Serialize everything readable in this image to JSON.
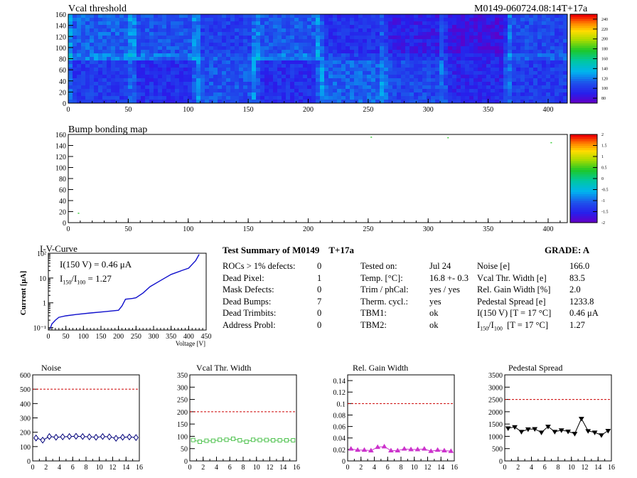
{
  "header": {
    "title": "Vcal threshold",
    "module_id": "M0149-060724.08:14T+17a"
  },
  "chart_data": [
    {
      "id": "vcal-threshold-map",
      "type": "heatmap",
      "title": "Vcal threshold",
      "xlim": [
        0,
        416
      ],
      "ylim": [
        0,
        160
      ],
      "x_ticks": [
        0,
        50,
        100,
        150,
        200,
        250,
        300,
        350,
        400
      ],
      "y_ticks": [
        0,
        20,
        40,
        60,
        80,
        100,
        120,
        140,
        160
      ],
      "z_range": [
        70,
        250
      ],
      "z_ticks": [
        80,
        100,
        120,
        140,
        160,
        180,
        200,
        220,
        240
      ],
      "roc_bottom_means": [
        100,
        96,
        108,
        95,
        112,
        104,
        92,
        100
      ],
      "roc_top_means": [
        112,
        108,
        102,
        110,
        96,
        88,
        82,
        104
      ]
    },
    {
      "id": "bump-bonding-map",
      "type": "heatmap",
      "title": "Bump bonding map",
      "xlim": [
        0,
        416
      ],
      "ylim": [
        0,
        160
      ],
      "x_ticks": [
        0,
        50,
        100,
        150,
        200,
        250,
        300,
        350,
        400
      ],
      "y_ticks": [
        0,
        20,
        40,
        60,
        80,
        100,
        120,
        140,
        160
      ],
      "z_range": [
        -2,
        2
      ],
      "z_ticks": [
        -2,
        -1.5,
        -1,
        -0.5,
        0,
        0.5,
        1,
        1.5,
        2
      ],
      "points": [
        [
          8,
          18
        ],
        [
          252,
          156
        ],
        [
          316,
          155
        ],
        [
          402,
          146
        ]
      ]
    },
    {
      "id": "iv-curve",
      "type": "line",
      "title": "I-V-Curve",
      "xlabel": "Voltage [V]",
      "ylabel": "Current [μA]",
      "xlim": [
        0,
        450
      ],
      "ylim": [
        0.08,
        100
      ],
      "log_y": true,
      "x_ticks": [
        0,
        50,
        100,
        150,
        200,
        250,
        300,
        350,
        400,
        450
      ],
      "y_ticks": [
        {
          "value": 0.1,
          "label": "10⁻¹"
        },
        {
          "value": 1,
          "label": "1"
        },
        {
          "value": 10,
          "label": "10"
        },
        {
          "value": 100,
          "label": "10²"
        }
      ],
      "annotation_1": "I(150 V) = 0.46 μA",
      "annotation_2_main": "I",
      "annotation_2_sub1": "150",
      "annotation_2_sep": "/I",
      "annotation_2_sub2": "100",
      "annotation_2_value": "=  1.27",
      "x": [
        5,
        10,
        20,
        30,
        50,
        80,
        120,
        160,
        200,
        210,
        220,
        240,
        250,
        270,
        290,
        320,
        350,
        380,
        400,
        420,
        430
      ],
      "y": [
        0.09,
        0.14,
        0.2,
        0.26,
        0.3,
        0.34,
        0.39,
        0.44,
        0.5,
        0.75,
        1.4,
        1.5,
        1.6,
        2.5,
        4.5,
        8,
        14,
        20,
        25,
        50,
        90
      ],
      "color": "#1010cc"
    },
    {
      "id": "noise-plot",
      "type": "line",
      "title": "Noise",
      "xlim": [
        0,
        16
      ],
      "ylim": [
        0,
        600
      ],
      "x_ticks": [
        0,
        2,
        4,
        6,
        8,
        10,
        12,
        14,
        16
      ],
      "y_ticks": [
        0,
        100,
        200,
        300,
        400,
        500,
        600
      ],
      "cut": 500,
      "marker": "diamond",
      "color": "#00007a",
      "x": [
        0.5,
        1.5,
        2.5,
        3.5,
        4.5,
        5.5,
        6.5,
        7.5,
        8.5,
        9.5,
        10.5,
        11.5,
        12.5,
        13.5,
        14.5,
        15.5
      ],
      "y": [
        160,
        145,
        170,
        165,
        168,
        170,
        172,
        170,
        168,
        165,
        170,
        168,
        158,
        165,
        167,
        163
      ]
    },
    {
      "id": "vcal-width-plot",
      "type": "line",
      "title": "Vcal Thr. Width",
      "xlim": [
        0,
        16
      ],
      "ylim": [
        0,
        350
      ],
      "x_ticks": [
        0,
        2,
        4,
        6,
        8,
        10,
        12,
        14,
        16
      ],
      "y_ticks": [
        0,
        50,
        100,
        150,
        200,
        250,
        300,
        350
      ],
      "cut": 200,
      "marker": "square",
      "color": "#4ec24e",
      "x": [
        0.5,
        1.5,
        2.5,
        3.5,
        4.5,
        5.5,
        6.5,
        7.5,
        8.5,
        9.5,
        10.5,
        11.5,
        12.5,
        13.5,
        14.5,
        15.5
      ],
      "y": [
        85,
        78,
        82,
        82,
        86,
        86,
        90,
        84,
        78,
        86,
        85,
        85,
        84,
        84,
        84,
        84
      ]
    },
    {
      "id": "gain-width-plot",
      "type": "line",
      "title": "Rel. Gain Width",
      "xlim": [
        0,
        16
      ],
      "ylim": [
        0,
        0.15
      ],
      "x_ticks": [
        0,
        2,
        4,
        6,
        8,
        10,
        12,
        14,
        16
      ],
      "y_ticks": [
        0,
        0.02,
        0.04,
        0.06,
        0.08,
        0.1,
        0.12,
        0.14
      ],
      "cut": 0.1,
      "marker": "triangle",
      "color": "#cc33cc",
      "x": [
        0.5,
        1.5,
        2.5,
        3.5,
        4.5,
        5.5,
        6.5,
        7.5,
        8.5,
        9.5,
        10.5,
        11.5,
        12.5,
        13.5,
        14.5,
        15.5
      ],
      "y": [
        0.021,
        0.019,
        0.019,
        0.018,
        0.024,
        0.025,
        0.018,
        0.018,
        0.021,
        0.02,
        0.02,
        0.021,
        0.017,
        0.019,
        0.018,
        0.017
      ]
    },
    {
      "id": "pedestal-plot",
      "type": "line",
      "title": "Pedestal Spread",
      "xlim": [
        0,
        16
      ],
      "ylim": [
        0,
        3500
      ],
      "x_ticks": [
        0,
        2,
        4,
        6,
        8,
        10,
        12,
        14,
        16
      ],
      "y_ticks": [
        0,
        500,
        1000,
        1500,
        2000,
        2500,
        3000,
        3500
      ],
      "cut": 2500,
      "marker": "triangle-down",
      "color": "#000000",
      "x": [
        0.5,
        1.5,
        2.5,
        3.5,
        4.5,
        5.5,
        6.5,
        7.5,
        8.5,
        9.5,
        10.5,
        11.5,
        12.5,
        13.5,
        14.5,
        15.5
      ],
      "y": [
        1330,
        1380,
        1190,
        1290,
        1300,
        1160,
        1400,
        1190,
        1250,
        1200,
        1110,
        1720,
        1220,
        1160,
        1050,
        1230
      ]
    }
  ],
  "summary": {
    "title": "Test Summary of M0149",
    "temp_tag": "T+17a",
    "grade": "GRADE:  A",
    "col1": [
      {
        "label": "ROCs > 1% defects:",
        "value": "0"
      },
      {
        "label": "Dead Pixel:",
        "value": "1"
      },
      {
        "label": "Mask Defects:",
        "value": "0"
      },
      {
        "label": "Dead Bumps:",
        "value": "7"
      },
      {
        "label": "Dead Trimbits:",
        "value": "0"
      },
      {
        "label": "Address Probl:",
        "value": "0"
      }
    ],
    "col2": [
      {
        "label": "Tested on:",
        "value": "Jul 24"
      },
      {
        "label": "Temp. [°C]:",
        "value": "16.8 +- 0.3"
      },
      {
        "label": "Trim / phCal:",
        "value": "yes / yes"
      },
      {
        "label": "Therm. cycl.:",
        "value": "yes"
      },
      {
        "label": "TBM1:",
        "value": "ok"
      },
      {
        "label": "TBM2:",
        "value": "ok"
      }
    ],
    "col3": [
      {
        "label": "Noise [e]",
        "value": "166.0"
      },
      {
        "label": "Vcal Thr. Width [e]",
        "value": "83.5"
      },
      {
        "label": "Rel. Gain Width [%]",
        "value": "2.0"
      },
      {
        "label": "Pedestal Spread [e]",
        "value": "1233.8"
      },
      {
        "label": "I(150 V) [T = 17 °C]",
        "value": "0.46 μA"
      }
    ],
    "ratio_row": {
      "main": "I",
      "sub1": "150",
      "sep": "/I",
      "sub2": "100",
      "cond": "[T = 17 °C]",
      "value": "1.27"
    }
  }
}
